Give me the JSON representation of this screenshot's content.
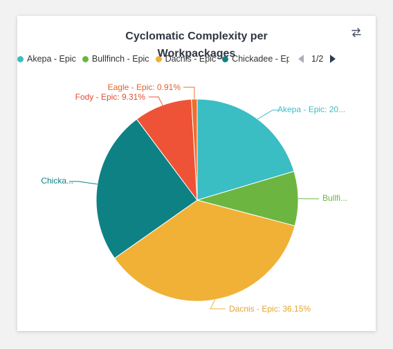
{
  "card": {
    "switch_icon": "swap-arrows-icon"
  },
  "legend": {
    "items": [
      {
        "label": "Akepa - Epic",
        "color": "#3bbdc4"
      },
      {
        "label": "Bullfinch - Epic",
        "color": "#6cb541"
      },
      {
        "label": "Dacnis - Epic",
        "color": "#f1b136"
      },
      {
        "label": "Chickadee - Epic",
        "color": "#0e8185"
      }
    ],
    "page": "1/2",
    "prev_icon": "triangle-left-icon",
    "next_icon": "triangle-right-icon"
  },
  "chart_data": {
    "type": "pie",
    "title": "Cyclomatic Complexity per Workpackages",
    "title_lines": [
      "Cyclomatic Complexity per",
      "Workpackages"
    ],
    "slices": [
      {
        "name": "Akepa - Epic",
        "value": 20.4,
        "color": "#3bbdc4",
        "label": "Akepa - Epic: 20..."
      },
      {
        "name": "Bullfinch - Epic",
        "value": 8.7,
        "color": "#6cb541",
        "label": "Bullfi..."
      },
      {
        "name": "Dacnis - Epic",
        "value": 36.15,
        "color": "#f1b136",
        "label": "Dacnis - Epic: 36.15%"
      },
      {
        "name": "Chickadee - Epic",
        "value": 24.53,
        "color": "#0e8185",
        "label": "Chicka..."
      },
      {
        "name": "Fody - Epic",
        "value": 9.31,
        "color": "#ee5337",
        "label": "Fody - Epic: 9.31%"
      },
      {
        "name": "Eagle - Epic",
        "value": 0.91,
        "color": "#ee6f2d",
        "label": "Eagle - Epic: 0.91%"
      }
    ]
  }
}
